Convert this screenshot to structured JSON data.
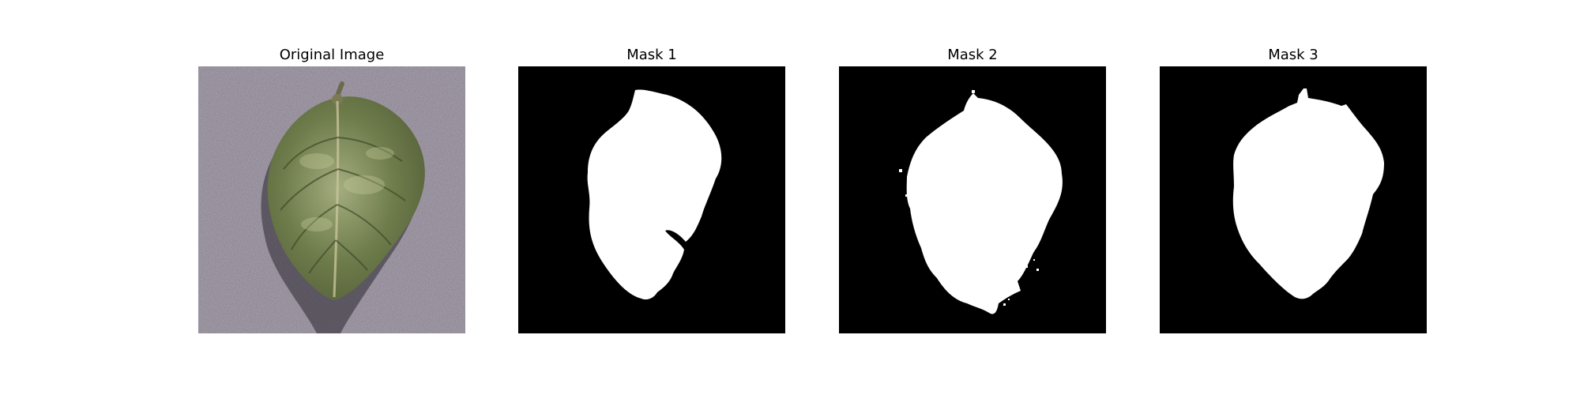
{
  "figure": {
    "panels": [
      {
        "title": "Original Image"
      },
      {
        "title": "Mask 1"
      },
      {
        "title": "Mask 2"
      },
      {
        "title": "Mask 3"
      }
    ]
  },
  "colors": {
    "background": "#ffffff",
    "mask_background": "#000000",
    "mask_foreground": "#ffffff",
    "surface": "#8f8895",
    "leaf_dark": "#4f5a34",
    "leaf_mid": "#6f7d4c",
    "leaf_light": "#a4ad7f"
  }
}
